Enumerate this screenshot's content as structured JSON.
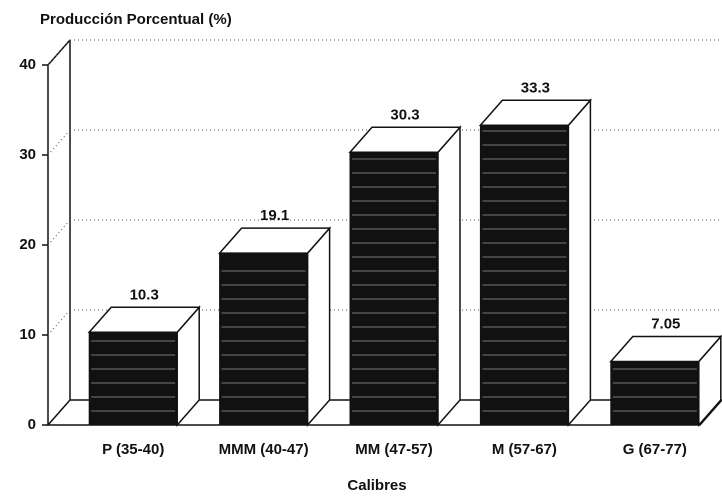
{
  "chart_data": {
    "type": "bar",
    "title": "Producción Porcentual (%)",
    "x_label": "Calibres",
    "categories": [
      "P (35-40)",
      "MMM (40-47)",
      "MM (47-57)",
      "M (57-67)",
      "G (67-77)"
    ],
    "values": [
      10.3,
      19.1,
      30.3,
      33.3,
      7.05
    ],
    "color": "#111111",
    "ylim": [
      0,
      40
    ],
    "yticks": [
      0,
      10,
      20,
      30,
      40
    ],
    "grid": true
  }
}
